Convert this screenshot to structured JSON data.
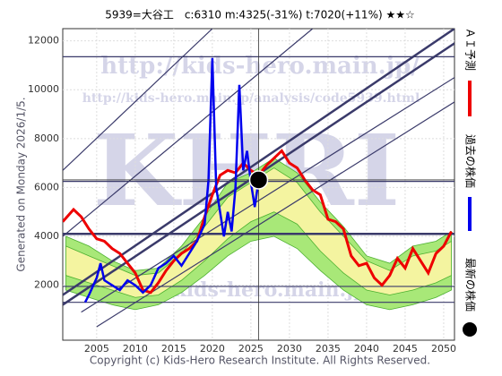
{
  "chart_data": {
    "type": "line",
    "title": "5939=大谷工　c:6310  m:4325(-31%)  t:7020(+11%)  ★★☆",
    "side_note": "Generated on Monday 2026/1/5.",
    "footer": "Copyright (c) Kids-Hero Research Institute. All Rights Reserved.",
    "annotations": [
      "http://kids-hero.main.jp/",
      "http://kids-hero.main.jp/analysis/code5939.html",
      "KHRI",
      "@kids-hero.main.jp"
    ],
    "xlim": [
      2000.6,
      2051.4
    ],
    "ylim": [
      -250,
      12500
    ],
    "xticks": [
      2005,
      2010,
      2015,
      2020,
      2025,
      2030,
      2035,
      2040,
      2045,
      2050
    ],
    "yticks": [
      2000,
      4000,
      6000,
      8000,
      10000,
      12000
    ],
    "grid": true,
    "bands": [
      {
        "color": "#a8e878",
        "x": [
          2001,
          2004,
          2007,
          2010,
          2013,
          2016,
          2019,
          2022,
          2025,
          2028,
          2031,
          2034,
          2037,
          2040,
          2043,
          2046,
          2049,
          2051
        ],
        "upper": [
          4000,
          3600,
          3000,
          2600,
          2700,
          3600,
          4800,
          6200,
          6600,
          7200,
          6600,
          5400,
          4400,
          3200,
          2900,
          3600,
          3800,
          4200
        ],
        "lower": [
          1800,
          1500,
          1200,
          1000,
          1200,
          1700,
          2400,
          3200,
          3800,
          4000,
          3500,
          2600,
          1800,
          1200,
          1000,
          1200,
          1500,
          1800
        ]
      },
      {
        "color": "#f4f4a0",
        "x": [
          2001,
          2004,
          2007,
          2010,
          2013,
          2016,
          2019,
          2022,
          2025,
          2028,
          2031,
          2034,
          2037,
          2040,
          2043,
          2046,
          2049,
          2051
        ],
        "upper": [
          3600,
          3200,
          2800,
          2400,
          2500,
          3300,
          4400,
          5600,
          6200,
          6800,
          6200,
          5000,
          4000,
          3000,
          2600,
          3200,
          3400,
          3800
        ],
        "lower": [
          2400,
          2100,
          1800,
          1500,
          1600,
          2200,
          3000,
          3900,
          4600,
          5000,
          4500,
          3400,
          2500,
          1800,
          1600,
          1800,
          2100,
          2400
        ]
      }
    ],
    "levels": [
      11350,
      6250,
      4100,
      1950,
      1300
    ],
    "trend_lines": [
      {
        "x": [
          2000.6,
          2020
        ],
        "y": [
          6700,
          12500
        ]
      },
      {
        "x": [
          2000.6,
          2033
        ],
        "y": [
          4000,
          12500
        ]
      },
      {
        "x": [
          2000.6,
          2051.4
        ],
        "y": [
          1600,
          12500
        ]
      },
      {
        "x": [
          2000.6,
          2051.4
        ],
        "y": [
          1200,
          11900
        ]
      },
      {
        "x": [
          2003,
          2051.4
        ],
        "y": [
          900,
          10500
        ]
      },
      {
        "x": [
          2005,
          2051.4
        ],
        "y": [
          300,
          9500
        ]
      }
    ],
    "series": [
      {
        "name": "ＡＩ予測",
        "color": "#ee0000",
        "x": [
          2000.6,
          2002,
          2003,
          2004,
          2005,
          2006,
          2007,
          2008,
          2009,
          2010,
          2011,
          2012,
          2013,
          2014,
          2015,
          2016,
          2017,
          2018,
          2019,
          2020,
          2021,
          2022,
          2023,
          2024,
          2025,
          2026,
          2027,
          2028,
          2029,
          2030,
          2031,
          2032,
          2033,
          2034,
          2035,
          2036,
          2037,
          2038,
          2039,
          2040,
          2041,
          2042,
          2043,
          2044,
          2045,
          2046,
          2047,
          2048,
          2049,
          2050,
          2051
        ],
        "values": [
          4600,
          5100,
          4800,
          4300,
          3900,
          3800,
          3500,
          3300,
          2900,
          2500,
          1800,
          1700,
          2100,
          2600,
          3000,
          3300,
          3500,
          3800,
          4800,
          5700,
          6500,
          6700,
          6600,
          7000,
          6700,
          6500,
          6900,
          7200,
          7500,
          7000,
          6800,
          6300,
          5900,
          5700,
          4700,
          4600,
          4300,
          3200,
          2800,
          2900,
          2300,
          2000,
          2400,
          3100,
          2700,
          3500,
          3000,
          2500,
          3300,
          3600,
          4200
        ]
      },
      {
        "name": "過去の株価",
        "color": "#0000ee",
        "x": [
          2003.5,
          2004,
          2005,
          2005.5,
          2006,
          2007,
          2008,
          2009,
          2010,
          2011,
          2012,
          2013,
          2014,
          2015,
          2016,
          2017,
          2018,
          2019,
          2019.5,
          2020,
          2020.5,
          2021,
          2021.5,
          2022,
          2022.5,
          2023,
          2023.5,
          2024,
          2024.5,
          2025,
          2025.5,
          2026
        ],
        "values": [
          1300,
          1600,
          2300,
          2900,
          2200,
          2000,
          1800,
          2200,
          2000,
          1700,
          2000,
          2700,
          2900,
          3200,
          2800,
          3300,
          3800,
          4500,
          6300,
          11300,
          6000,
          5000,
          4000,
          5000,
          4200,
          6000,
          10200,
          6700,
          7500,
          6200,
          5200,
          6310
        ]
      },
      {
        "name": "最新の株価",
        "color": "#000000",
        "x": [
          2026
        ],
        "values": [
          6310
        ]
      }
    ]
  }
}
